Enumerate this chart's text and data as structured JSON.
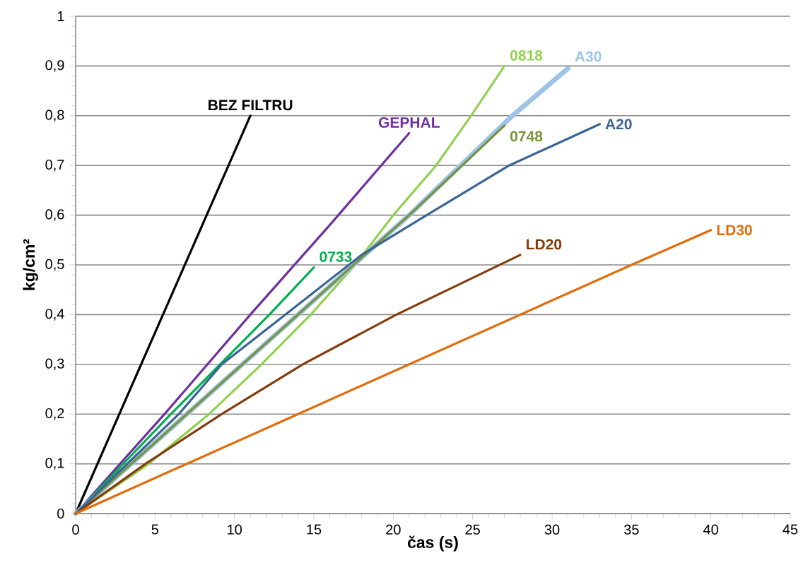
{
  "chart_data": {
    "type": "line",
    "xlabel": "čas (s)",
    "ylabel": "kg/cm²",
    "xlim": [
      0,
      45
    ],
    "xticks": [
      0,
      5,
      10,
      15,
      20,
      25,
      30,
      35,
      40,
      45
    ],
    "ylim": [
      0,
      1
    ],
    "yticks": [
      0,
      {
        "value": 0.1,
        "label": "0,1"
      },
      {
        "value": 0.2,
        "label": "0,2"
      },
      {
        "value": 0.3,
        "label": "0,3"
      },
      {
        "value": 0.4,
        "label": "0,4"
      },
      {
        "value": 0.5,
        "label": "0,5"
      },
      {
        "value": 0.6,
        "label": "0,6"
      },
      {
        "value": 0.7,
        "label": "0,7"
      },
      {
        "value": 0.8,
        "label": "0,8"
      },
      {
        "value": 0.9,
        "label": "0,9"
      },
      1
    ],
    "grid": "y",
    "series": [
      {
        "name": "BEZ FILTRU",
        "color": "#000000",
        "x": [
          0,
          5.5,
          11
        ],
        "values": [
          0,
          0.4,
          0.8
        ]
      },
      {
        "name": "GEPHAL",
        "color": "#7030a0",
        "x": [
          0,
          5.6,
          11,
          16,
          21
        ],
        "values": [
          0,
          0.2,
          0.4,
          0.58,
          0.765
        ]
      },
      {
        "name": "0733",
        "color": "#00b050",
        "x": [
          0,
          6,
          12.2,
          15
        ],
        "values": [
          0,
          0.2,
          0.4,
          0.495
        ]
      },
      {
        "name": "0818",
        "color": "#92d050",
        "x": [
          0,
          4.6,
          8.4,
          11.7,
          14.8,
          17.6,
          20,
          22.7,
          24.9,
          27
        ],
        "values": [
          0,
          0.1,
          0.2,
          0.3,
          0.4,
          0.5,
          0.6,
          0.7,
          0.8,
          0.9
        ]
      },
      {
        "name": "A30",
        "color": "#9dc3e6",
        "x": [
          0,
          10.5,
          21,
          27.5,
          31
        ],
        "values": [
          0,
          0.3,
          0.6,
          0.8,
          0.895
        ]
      },
      {
        "name": "0748",
        "color": "#77933c",
        "x": [
          0,
          10.5,
          21,
          27
        ],
        "values": [
          0,
          0.3,
          0.6,
          0.78
        ]
      },
      {
        "name": "A20",
        "color": "#3a6496",
        "x": [
          0,
          6.5,
          9.2,
          13.2,
          18,
          22.1,
          27.3,
          33
        ],
        "values": [
          0,
          0.2,
          0.3,
          0.4,
          0.52,
          0.6,
          0.7,
          0.783
        ]
      },
      {
        "name": "LD20",
        "color": "#843c0c",
        "x": [
          0,
          4.4,
          9.2,
          14.3,
          20.2,
          28
        ],
        "values": [
          0,
          0.1,
          0.2,
          0.3,
          0.4,
          0.52
        ]
      },
      {
        "name": "LD30",
        "color": "#e36c0a",
        "x": [
          0,
          7,
          14,
          21,
          28,
          35,
          40
        ],
        "values": [
          0,
          0.1,
          0.2,
          0.3,
          0.4,
          0.5,
          0.57
        ]
      }
    ]
  }
}
